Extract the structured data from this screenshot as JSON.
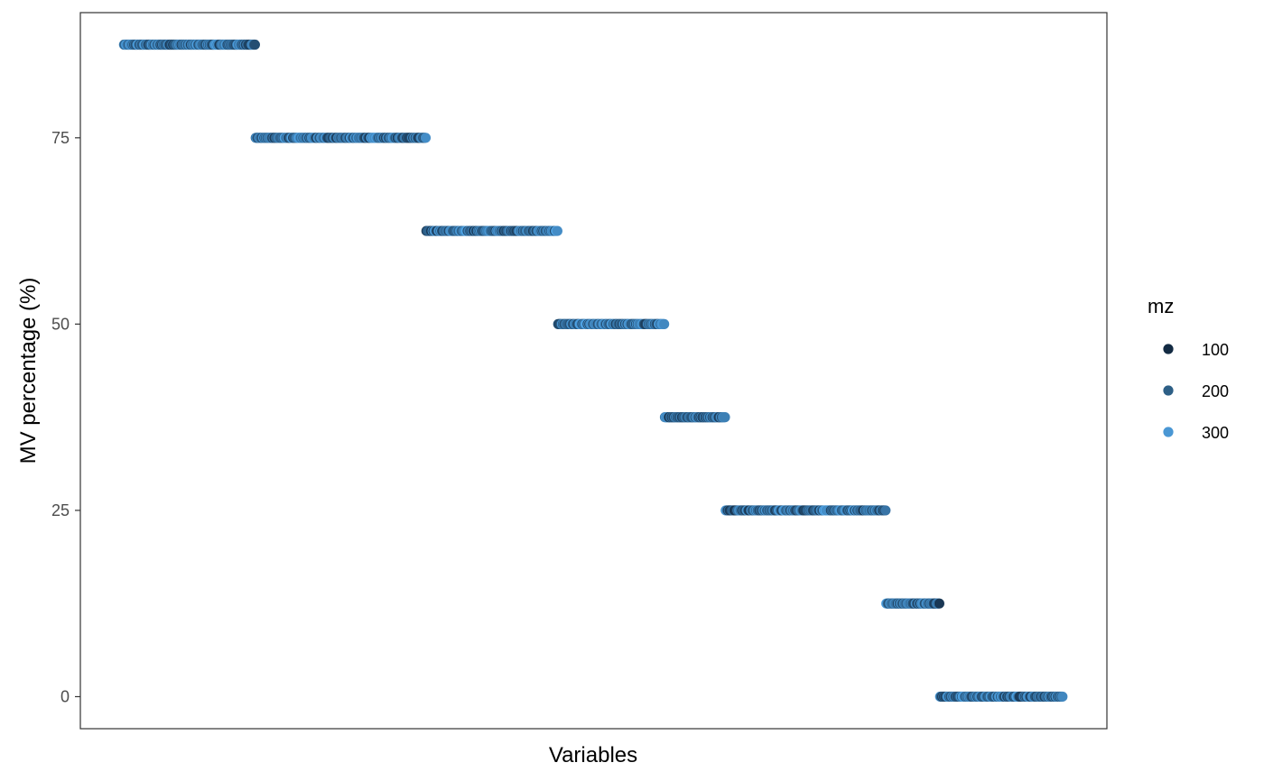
{
  "chart_data": {
    "type": "scatter",
    "xlabel": "Variables",
    "ylabel": "MV percentage (%)",
    "ylim": [
      -4.3,
      91.8
    ],
    "yticks": [
      0,
      25,
      50,
      75
    ],
    "ytick_labels": [
      "0",
      "25",
      "50",
      "75"
    ],
    "grid": false,
    "legend": {
      "title": "mz",
      "position": "right",
      "entries": [
        {
          "label": "100",
          "value": 100,
          "color": "#132b43"
        },
        {
          "label": "200",
          "value": 200,
          "color": "#2d5f86"
        },
        {
          "label": "300",
          "value": 300,
          "color": "#4a97d4"
        }
      ]
    },
    "color_scale": {
      "low": "#132b43",
      "high": "#56b1f7",
      "domain": [
        60,
        340
      ]
    },
    "groups": [
      {
        "y": 87.5,
        "x_start": 1,
        "x_end": 169
      },
      {
        "y": 75,
        "x_start": 170,
        "x_end": 388
      },
      {
        "y": 62.5,
        "x_start": 389,
        "x_end": 557
      },
      {
        "y": 50,
        "x_start": 558,
        "x_end": 694
      },
      {
        "y": 37.5,
        "x_start": 695,
        "x_end": 772
      },
      {
        "y": 25,
        "x_start": 773,
        "x_end": 978
      },
      {
        "y": 12.5,
        "x_start": 979,
        "x_end": 1047
      },
      {
        "y": 0,
        "x_start": 1048,
        "x_end": 1205
      }
    ],
    "xlim": [
      -55,
      1262
    ]
  }
}
